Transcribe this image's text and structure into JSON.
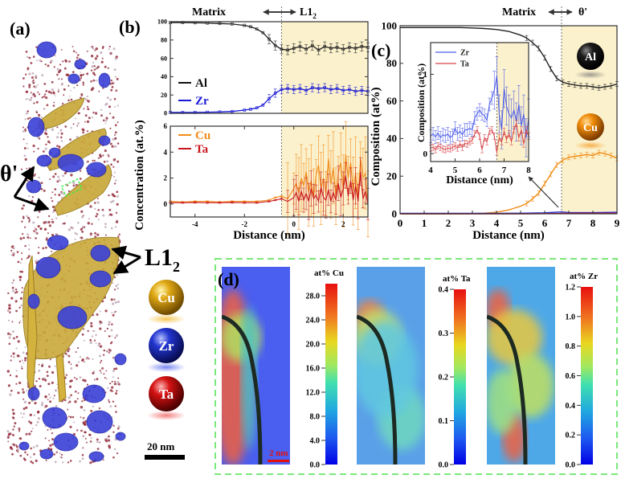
{
  "panel_labels": {
    "a": "(a)",
    "b": "(b)",
    "c": "(c)",
    "d": "(d)"
  },
  "panel_a": {
    "annotations": {
      "theta_prime": "θ'",
      "l12_main": "L1",
      "l12_sub": "2"
    },
    "legend_spheres": [
      {
        "label": "Cu",
        "color": "#d9a10a"
      },
      {
        "label": "Zr",
        "color": "#1c2fc8"
      },
      {
        "label": "Ta",
        "color": "#d41010"
      }
    ],
    "scale_bar": "20 nm"
  },
  "panel_c_spheres": [
    {
      "label": "Al",
      "color": "#111111"
    },
    {
      "label": "Cu",
      "color": "#e8900a"
    }
  ],
  "panel_d": {
    "scale_bar": "2 nm",
    "maps": [
      {
        "title": "at% Cu",
        "ticks": [
          "0.0",
          "4.0",
          "8.0",
          "12.0",
          "16.0",
          "20.0",
          "24.0",
          "28.0"
        ],
        "range": [
          0,
          30
        ]
      },
      {
        "title": "at% Ta",
        "ticks": [
          "0.0",
          "0.1",
          "0.2",
          "0.3",
          "0.4"
        ],
        "range": [
          0,
          0.4
        ]
      },
      {
        "title": "at% Zr",
        "ticks": [
          "0.0",
          "0.2",
          "0.4",
          "0.6",
          "0.8",
          "1.0",
          "1.2"
        ],
        "range": [
          0,
          1.2
        ]
      }
    ]
  },
  "chart_data": [
    {
      "id": "b-top",
      "type": "line",
      "header": {
        "left": "Matrix",
        "right_main": "L1",
        "right_sub": "2"
      },
      "xlabel": "",
      "ylabel": "Concentration (at.%)",
      "xlim": [
        -5,
        3
      ],
      "ylim": [
        0,
        100
      ],
      "yticks": [
        0,
        20,
        40,
        60,
        80,
        100
      ],
      "interface_x": -0.5,
      "legend": [
        {
          "name": "Al",
          "color": "#111111"
        },
        {
          "name": "Zr",
          "color": "#1a1ad6"
        }
      ],
      "series": [
        {
          "name": "Al",
          "color": "#222222",
          "x": [
            -5,
            -4.5,
            -4,
            -3.5,
            -3,
            -2.5,
            -2,
            -1.75,
            -1.5,
            -1.25,
            -1,
            -0.75,
            -0.5,
            -0.25,
            0,
            0.25,
            0.5,
            0.75,
            1,
            1.25,
            1.5,
            1.75,
            2,
            2.25,
            2.5,
            2.75,
            3
          ],
          "y": [
            99,
            99,
            98.8,
            98.5,
            98,
            97.5,
            96,
            94.5,
            92,
            88,
            81,
            74,
            70,
            69,
            71,
            73,
            70,
            74,
            69,
            73,
            71,
            72,
            70,
            72,
            71,
            73,
            72
          ]
        },
        {
          "name": "Zr",
          "color": "#1a1ad6",
          "x": [
            -5,
            -4.5,
            -4,
            -3.5,
            -3,
            -2.5,
            -2,
            -1.75,
            -1.5,
            -1.25,
            -1,
            -0.75,
            -0.5,
            -0.25,
            0,
            0.25,
            0.5,
            0.75,
            1,
            1.25,
            1.5,
            1.75,
            2,
            2.25,
            2.5,
            2.75,
            3
          ],
          "y": [
            1,
            1,
            1,
            1.2,
            1.5,
            2,
            3.5,
            4.5,
            6,
            9,
            16,
            22,
            26,
            27,
            26,
            27,
            25,
            28,
            27,
            28,
            26,
            27,
            25,
            26,
            24,
            25,
            24
          ]
        }
      ]
    },
    {
      "id": "b-bottom",
      "type": "line",
      "xlabel": "Distance (nm)",
      "xlim": [
        -5,
        3
      ],
      "ylim": [
        -1,
        6
      ],
      "xticks": [
        -4,
        -2,
        0,
        2
      ],
      "yticks": [
        0,
        2,
        4,
        6
      ],
      "interface_x": -0.5,
      "legend": [
        {
          "name": "Cu",
          "color": "#f28c1a"
        },
        {
          "name": "Ta",
          "color": "#c8161d"
        }
      ],
      "series": [
        {
          "name": "Cu",
          "color": "#f28c1a",
          "x": [
            -5,
            -4.5,
            -4,
            -3.5,
            -3,
            -2.5,
            -2,
            -1.5,
            -1,
            -0.75,
            -0.5,
            -0.25,
            0,
            0.1,
            0.2,
            0.3,
            0.4,
            0.5,
            0.6,
            0.7,
            0.8,
            0.9,
            1,
            1.1,
            1.2,
            1.3,
            1.4,
            1.5,
            1.6,
            1.7,
            1.8,
            1.9,
            2,
            2.1,
            2.2,
            2.3,
            2.4,
            2.5,
            2.6,
            2.7,
            2.8,
            2.9,
            3
          ],
          "y": [
            0.2,
            0.15,
            0.2,
            0.2,
            0.15,
            0.2,
            0.2,
            0.2,
            0.3,
            0.5,
            0.6,
            0.4,
            1.2,
            1.6,
            0.8,
            2.0,
            1.4,
            2.5,
            0.9,
            1.8,
            0.5,
            2.2,
            3.0,
            1.2,
            2.0,
            0.8,
            3.5,
            1.5,
            2.8,
            0.6,
            2.4,
            3.2,
            1.0,
            3.8,
            2.0,
            3.2,
            1.0,
            2.4,
            0.2,
            3.5,
            2.0,
            2.4,
            0
          ]
        },
        {
          "name": "Ta",
          "color": "#c8161d",
          "x": [
            -5,
            -4.5,
            -4,
            -3.5,
            -3,
            -2.5,
            -2,
            -1.5,
            -1,
            -0.75,
            -0.5,
            -0.25,
            0,
            0.1,
            0.2,
            0.3,
            0.4,
            0.5,
            0.6,
            0.7,
            0.8,
            0.9,
            1,
            1.1,
            1.2,
            1.3,
            1.4,
            1.5,
            1.6,
            1.7,
            1.8,
            1.9,
            2,
            2.1,
            2.2,
            2.3,
            2.4,
            2.5,
            2.6,
            2.7,
            2.8,
            2.9,
            3
          ],
          "y": [
            0.1,
            0.1,
            0.12,
            0.1,
            0.1,
            0.12,
            0.1,
            0.1,
            0.2,
            0.3,
            0.4,
            0.2,
            0.5,
            0.9,
            0.2,
            1.0,
            0.3,
            0.8,
            0.2,
            1.2,
            0.4,
            0.7,
            0.2,
            1.3,
            0.5,
            0.3,
            1.1,
            0.2,
            0.9,
            0.3,
            1.6,
            0.5,
            1.2,
            2.2,
            0.6,
            1.8,
            0.3,
            1.4,
            0.2,
            2.5,
            0.4,
            1.0,
            0
          ]
        }
      ]
    },
    {
      "id": "c-main",
      "type": "line",
      "header": {
        "left": "Matrix",
        "right": "θ'"
      },
      "xlabel": "Distance (nm)",
      "ylabel": "Composition (at%)",
      "xlim": [
        0,
        9
      ],
      "ylim": [
        0,
        100
      ],
      "xticks": [
        0,
        1,
        2,
        3,
        4,
        5,
        6,
        7,
        8,
        9
      ],
      "yticks": [
        0,
        20,
        40,
        60,
        80,
        100
      ],
      "interface_x": 6.7,
      "series": [
        {
          "name": "Al",
          "color": "#222222",
          "x": [
            0,
            0.5,
            1,
            1.5,
            2,
            2.5,
            3,
            3.5,
            4,
            4.5,
            5,
            5.25,
            5.5,
            5.75,
            6,
            6.25,
            6.5,
            6.75,
            7,
            7.25,
            7.5,
            7.75,
            8,
            8.25,
            8.5,
            8.75,
            9
          ],
          "y": [
            99,
            99,
            99,
            99,
            99,
            99,
            98.8,
            98.5,
            98,
            97,
            95,
            93.5,
            91,
            88,
            83,
            77,
            72,
            70,
            69,
            68.5,
            68,
            68,
            67.5,
            67,
            67.5,
            68,
            69
          ]
        },
        {
          "name": "Cu",
          "color": "#f08c14",
          "x": [
            0,
            0.5,
            1,
            1.5,
            2,
            2.5,
            3,
            3.5,
            4,
            4.5,
            5,
            5.25,
            5.5,
            5.75,
            6,
            6.25,
            6.5,
            6.75,
            7,
            7.25,
            7.5,
            7.75,
            8,
            8.25,
            8.5,
            8.75,
            9
          ],
          "y": [
            0,
            0,
            0,
            0,
            0,
            0,
            0.1,
            0.3,
            0.8,
            2,
            4,
            5.5,
            8,
            11,
            16,
            21,
            26,
            28.5,
            30,
            30.5,
            31,
            31.5,
            31,
            32.5,
            32,
            31,
            29.5
          ]
        },
        {
          "name": "Zr",
          "color": "#2a2ad8",
          "x": [
            0,
            1,
            2,
            3,
            4,
            5,
            6,
            6.7,
            7,
            8,
            9
          ],
          "y": [
            0.2,
            0.2,
            0.2,
            0.2,
            0.2,
            0.3,
            0.5,
            1,
            0.6,
            0.6,
            0.8
          ]
        },
        {
          "name": "Ta",
          "color": "#c8161d",
          "x": [
            0,
            1,
            2,
            3,
            4,
            5,
            6,
            7,
            8,
            9
          ],
          "y": [
            0,
            0,
            0,
            0,
            0,
            0,
            0.1,
            0.2,
            0.2,
            0.2
          ]
        }
      ]
    },
    {
      "id": "c-inset",
      "type": "line",
      "xlabel": "Distance (nm)",
      "ylabel": "Composition (at%)",
      "xlim": [
        4,
        8
      ],
      "ylim": [
        -0.1,
        1.4
      ],
      "xticks": [
        4,
        5,
        6,
        7,
        8
      ],
      "yticks": [
        0,
        1
      ],
      "interface_x": 6.7,
      "legend": [
        {
          "name": "Zr",
          "color": "#4a5ae8"
        },
        {
          "name": "Ta",
          "color": "#d6454a"
        }
      ],
      "series": [
        {
          "name": "Zr",
          "color": "#4a5ae8",
          "x": [
            4,
            4.1,
            4.2,
            4.3,
            4.4,
            4.5,
            4.6,
            4.7,
            4.8,
            4.9,
            5,
            5.1,
            5.2,
            5.3,
            5.4,
            5.5,
            5.6,
            5.7,
            5.8,
            5.9,
            6,
            6.1,
            6.2,
            6.3,
            6.4,
            6.5,
            6.6,
            6.7,
            6.8,
            6.9,
            7,
            7.1,
            7.2,
            7.3,
            7.4,
            7.5,
            7.6,
            7.7,
            7.8,
            7.9,
            8
          ],
          "y": [
            0.22,
            0.25,
            0.21,
            0.26,
            0.2,
            0.24,
            0.22,
            0.25,
            0.2,
            0.23,
            0.32,
            0.25,
            0.28,
            0.24,
            0.3,
            0.3,
            0.32,
            0.3,
            0.45,
            0.5,
            0.55,
            0.5,
            0.48,
            0.42,
            0.62,
            0.7,
            0.8,
            0.98,
            0.5,
            0.3,
            0.82,
            0.6,
            0.5,
            0.45,
            0.55,
            0.4,
            0.62,
            0.35,
            0.5,
            0.2,
            0.45
          ]
        },
        {
          "name": "Ta",
          "color": "#d6454a",
          "x": [
            4,
            4.1,
            4.2,
            4.3,
            4.4,
            4.5,
            4.6,
            4.7,
            4.8,
            4.9,
            5,
            5.1,
            5.2,
            5.3,
            5.4,
            5.5,
            5.6,
            5.7,
            5.8,
            5.9,
            6,
            6.1,
            6.2,
            6.3,
            6.4,
            6.5,
            6.6,
            6.7,
            6.8,
            6.9,
            7,
            7.1,
            7.2,
            7.3,
            7.4,
            7.5,
            7.6,
            7.7,
            7.8,
            7.9,
            8
          ],
          "y": [
            0.07,
            0.08,
            0.05,
            0.1,
            0.08,
            0.06,
            0.05,
            0.07,
            0.06,
            0.08,
            0.1,
            0.07,
            0.12,
            0.08,
            0.13,
            0.12,
            0.15,
            0.17,
            0.25,
            0.3,
            0.22,
            0.05,
            0.2,
            0.15,
            0.28,
            0.3,
            0.22,
            0.02,
            0.2,
            0.15,
            0.28,
            0.18,
            0.25,
            0.15,
            0.3,
            0.38,
            0.2,
            0.3,
            0.12,
            0.3,
            0.22
          ]
        }
      ]
    }
  ]
}
